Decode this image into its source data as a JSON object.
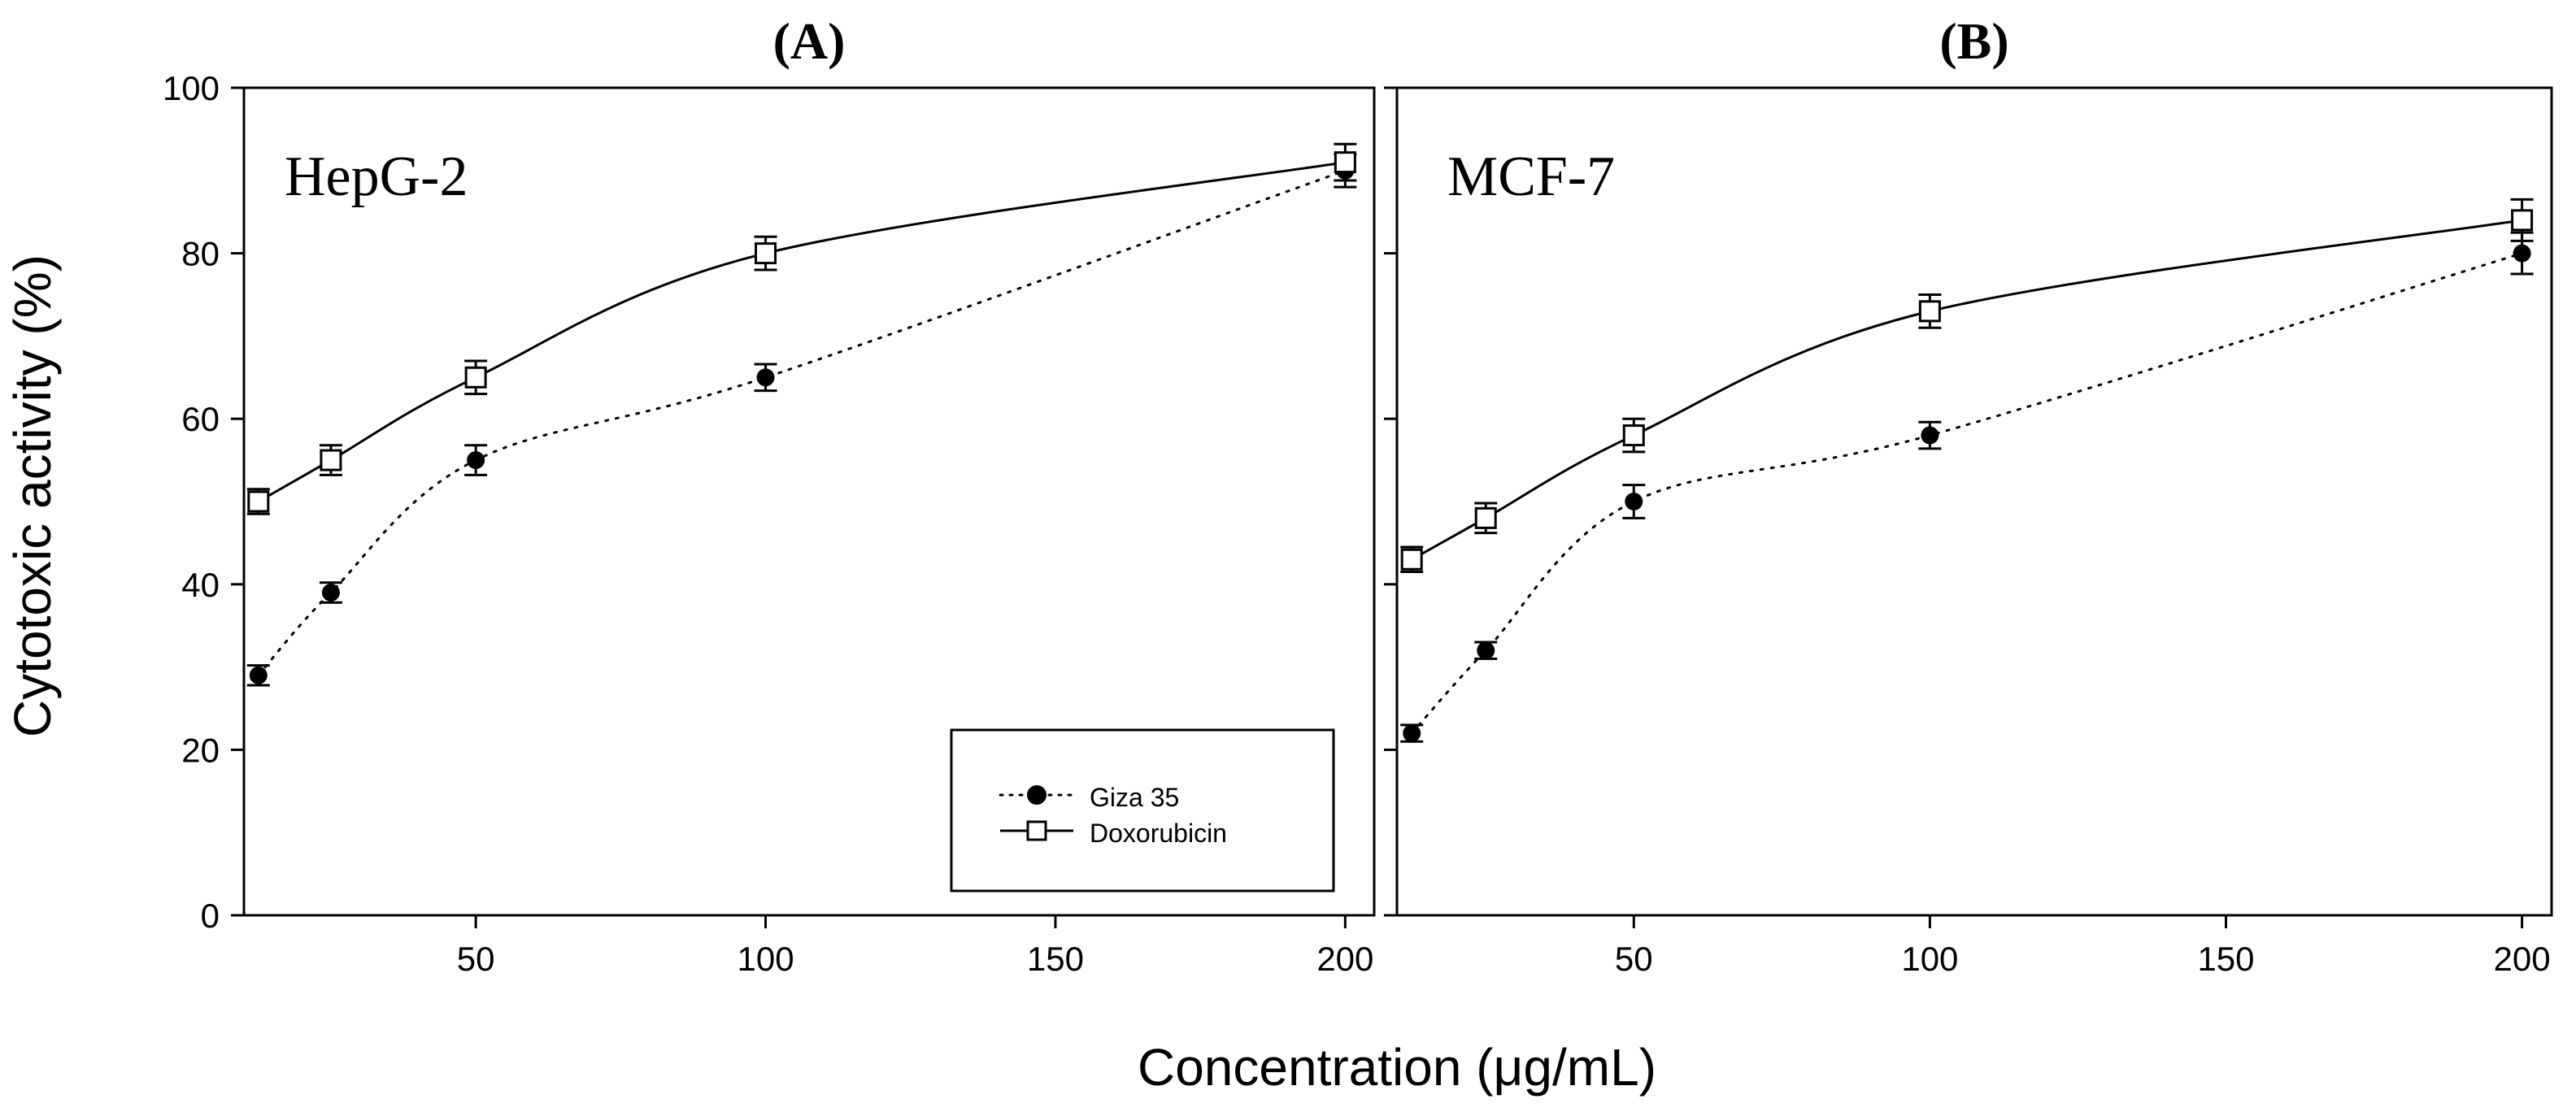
{
  "figure": {
    "xlabel": "Concentration (μg/mL)",
    "ylabel": "Cytotoxic activity (%)"
  },
  "legend": {
    "entries": [
      "Giza 35",
      "Doxorubicin"
    ]
  },
  "chart_data": [
    {
      "type": "line",
      "panel_label": "(A)",
      "title": "HepG-2",
      "xlabel": "Concentration (μg/mL)",
      "ylabel": "Cytotoxic activity (%)",
      "xlim": [
        10,
        205
      ],
      "ylim": [
        0,
        100
      ],
      "xticks": [
        50,
        100,
        150,
        200
      ],
      "yticks": [
        0,
        20,
        40,
        60,
        80,
        100
      ],
      "legend_position": "bottom-right",
      "series": [
        {
          "name": "Giza 35",
          "style": "dotted",
          "marker": "filled-circle",
          "x": [
            12.5,
            25,
            50,
            100,
            200
          ],
          "y": [
            29,
            39,
            55,
            65,
            90
          ],
          "error": [
            1.2,
            1.2,
            1.8,
            1.6,
            2.0
          ]
        },
        {
          "name": "Doxorubicin",
          "style": "solid",
          "marker": "open-square",
          "x": [
            12.5,
            25,
            50,
            100,
            200
          ],
          "y": [
            50,
            55,
            65,
            80,
            91
          ],
          "error": [
            1.5,
            1.8,
            2.0,
            2.0,
            2.2
          ]
        }
      ]
    },
    {
      "type": "line",
      "panel_label": "(B)",
      "title": "MCF-7",
      "xlabel": "Concentration (μg/mL)",
      "ylabel": "Cytotoxic activity (%)",
      "xlim": [
        10,
        205
      ],
      "ylim": [
        0,
        100
      ],
      "xticks": [
        50,
        100,
        150,
        200
      ],
      "yticks": [
        0,
        20,
        40,
        60,
        80,
        100
      ],
      "series": [
        {
          "name": "Giza 35",
          "style": "dotted",
          "marker": "filled-circle",
          "x": [
            12.5,
            25,
            50,
            100,
            200
          ],
          "y": [
            22,
            32,
            50,
            58,
            80
          ],
          "error": [
            1.0,
            1.0,
            2.0,
            1.6,
            2.5
          ]
        },
        {
          "name": "Doxorubicin",
          "style": "solid",
          "marker": "open-square",
          "x": [
            12.5,
            25,
            50,
            100,
            200
          ],
          "y": [
            43,
            48,
            58,
            73,
            84
          ],
          "error": [
            1.5,
            1.8,
            2.0,
            2.0,
            2.5
          ]
        }
      ]
    }
  ]
}
